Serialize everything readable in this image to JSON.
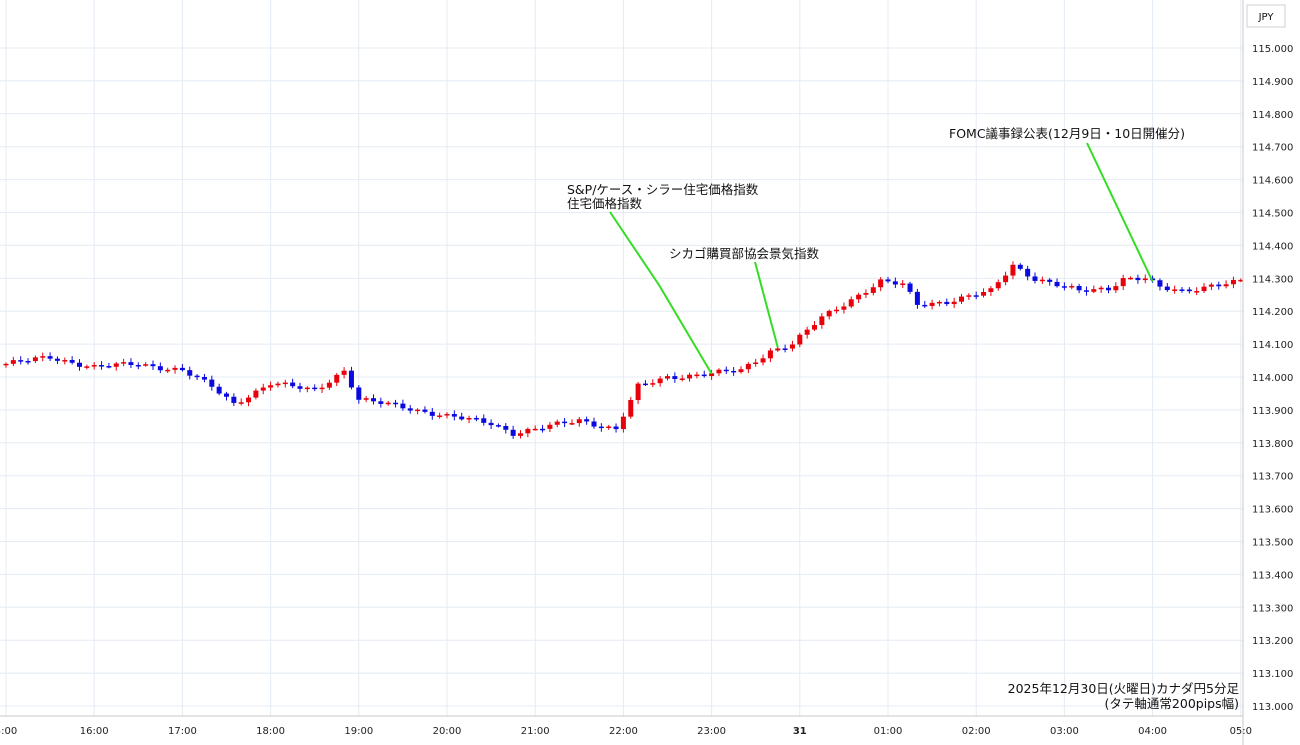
{
  "chart_data": {
    "type": "candlestick",
    "currency_label": "JPY",
    "caption_line1": "2025年12月30日(火曜日)カナダ円5分足",
    "caption_line2": "(タテ軸通常200pips幅)",
    "ylim": [
      113.0,
      115.0
    ],
    "y_ticks": [
      "115.000",
      "114.900",
      "114.800",
      "114.700",
      "114.600",
      "114.500",
      "114.400",
      "114.300",
      "114.200",
      "114.100",
      "114.000",
      "113.900",
      "113.800",
      "113.700",
      "113.600",
      "113.500",
      "113.400",
      "113.300",
      "113.200",
      "113.100",
      "113.000"
    ],
    "x_ticks": [
      "5:00",
      "16:00",
      "17:00",
      "18:00",
      "19:00",
      "20:00",
      "21:00",
      "22:00",
      "23:00",
      "31",
      "01:00",
      "02:00",
      "03:00",
      "04:00",
      "05:0"
    ],
    "grid": true,
    "up_color": "#e8000b",
    "down_color": "#0a0ae0",
    "annotation_color": "#33dd22",
    "annotations": [
      {
        "line1": "S&P/ケース・シラー住宅価格指数",
        "line2": "住宅価格指数",
        "target_time": "23:00",
        "target_price": 114.01
      },
      {
        "line1": "シカゴ購買部協会景気指数",
        "line2": "",
        "target_time": "23:45",
        "target_price": 114.09
      },
      {
        "line1": "FOMC議事録公表(12月9日・10日開催分)",
        "line2": "",
        "target_time": "04:00",
        "target_price": 114.29
      }
    ],
    "close_anchors": [
      [
        "15:00",
        114.04
      ],
      [
        "15:30",
        114.06
      ],
      [
        "16:00",
        114.03
      ],
      [
        "16:30",
        114.04
      ],
      [
        "17:00",
        114.02
      ],
      [
        "17:20",
        113.97
      ],
      [
        "17:35",
        113.92
      ],
      [
        "18:00",
        113.98
      ],
      [
        "18:30",
        113.96
      ],
      [
        "18:50",
        114.02
      ],
      [
        "19:00",
        113.93
      ],
      [
        "19:30",
        113.91
      ],
      [
        "20:00",
        113.88
      ],
      [
        "20:30",
        113.86
      ],
      [
        "20:45",
        113.83
      ],
      [
        "21:00",
        113.84
      ],
      [
        "21:30",
        113.87
      ],
      [
        "21:55",
        113.84
      ],
      [
        "22:10",
        113.97
      ],
      [
        "22:30",
        114.0
      ],
      [
        "23:00",
        114.01
      ],
      [
        "23:20",
        114.02
      ],
      [
        "23:40",
        114.08
      ],
      [
        "23:55",
        114.1
      ],
      [
        "00:15",
        114.18
      ],
      [
        "00:40",
        114.25
      ],
      [
        "00:55",
        114.29
      ],
      [
        "01:10",
        114.28
      ],
      [
        "01:20",
        114.22
      ],
      [
        "01:40",
        114.23
      ],
      [
        "02:10",
        114.26
      ],
      [
        "02:25",
        114.34
      ],
      [
        "02:40",
        114.3
      ],
      [
        "02:55",
        114.28
      ],
      [
        "03:10",
        114.26
      ],
      [
        "03:30",
        114.27
      ],
      [
        "03:40",
        114.3
      ],
      [
        "03:55",
        114.3
      ],
      [
        "04:05",
        114.27
      ],
      [
        "04:20",
        114.26
      ],
      [
        "04:40",
        114.28
      ],
      [
        "05:00",
        114.29
      ]
    ]
  }
}
